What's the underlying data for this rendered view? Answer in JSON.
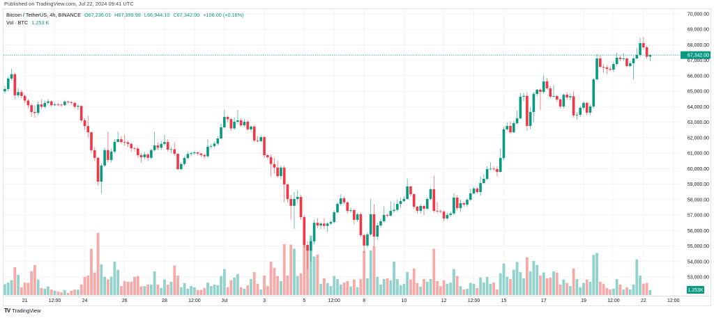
{
  "published": "Published on TradingView.com, Jul 22, 2024 09:41 UTC",
  "legend": {
    "symbol": "Bitcoin / TetherUS, 4h, BINANCE",
    "open": "O67,236.01",
    "high": "H67,399.98",
    "low": "L66,944.10",
    "close": "C67,342.00",
    "change": "+106.00 (+0.16%)",
    "volume_label": "Vol · BTC",
    "volume_value": "1.253 K"
  },
  "footer": {
    "logo_text": "TradingView"
  },
  "colors": {
    "up": "#089981",
    "down": "#f23645",
    "volume_up": "#92d2cc",
    "volume_down": "#f7a9a7",
    "grid": "#f2f3f5"
  },
  "chart_data": {
    "type": "candlestick",
    "symbol": "BTCUSDT",
    "interval": "4h",
    "ylim": [
      53000,
      70000
    ],
    "grid": true,
    "y_ticks": [
      "70,000.00",
      "69,000.00",
      "68,000.00",
      "67,000.00",
      "66,000.00",
      "65,000.00",
      "64,000.00",
      "63,000.00",
      "62,000.00",
      "61,000.00",
      "60,000.00",
      "59,000.00",
      "58,000.00",
      "57,000.00",
      "56,000.00",
      "55,000.00",
      "54,000.00",
      "53,000.00"
    ],
    "x_ticks": [
      "21",
      "12:00",
      "24",
      "26",
      "28",
      "12:00",
      "Jul",
      "3",
      "5",
      "12:00",
      "8",
      "10",
      "12",
      "12:00",
      "15",
      "17",
      "19",
      "12:00",
      "22",
      "12:00"
    ],
    "last_price_label": "67,342.00",
    "last_volume_label": "1.253K",
    "open": [
      65000,
      65150,
      65820,
      66100,
      64740,
      64950,
      64700,
      64400,
      64100,
      63660,
      63600,
      64150,
      64000,
      64250,
      64350,
      64100,
      64150,
      64130,
      64100,
      64330,
      64300,
      64250,
      64000,
      64050,
      63120,
      62750,
      62350,
      61190,
      60700,
      59160,
      60200,
      61200,
      60560,
      61100,
      61730,
      61900,
      61720,
      61700,
      61600,
      61320,
      61300,
      60870,
      60740,
      60920,
      60700,
      61200,
      61500,
      61350,
      61600,
      61720,
      61230,
      61250,
      60960,
      59970,
      60300,
      60690,
      60950,
      61000,
      61050,
      60980,
      60880,
      60800,
      61420,
      61460,
      61620,
      61950,
      62670,
      63340,
      63200,
      62600,
      63030,
      63120,
      62800,
      63030,
      62540,
      62720,
      61820,
      61780,
      62040,
      60870,
      60740,
      60300,
      60070,
      59520,
      60070,
      58980,
      58040,
      57600,
      58040,
      58170,
      56870,
      55070,
      54700,
      55300,
      56500,
      56330,
      56450,
      56300,
      56450,
      56550,
      57180,
      57720,
      58080,
      57820,
      57270,
      57320,
      56690,
      57050,
      55700,
      55030,
      55750,
      57050,
      55610,
      56330,
      56600,
      57010,
      56960,
      57270,
      57340,
      57720,
      57900,
      58040,
      58850,
      58350,
      57540,
      57270,
      57590,
      57410,
      58040,
      58670,
      57270,
      57250,
      57220,
      56780,
      57010,
      57100,
      58130,
      57450,
      57770,
      57680,
      57990,
      58400,
      58710,
      58490,
      59070,
      59340,
      59970,
      60000,
      59970,
      59790,
      60690,
      62540,
      62760,
      62350,
      62940,
      63250,
      64650,
      64700,
      62760,
      63660,
      64830,
      65100,
      64960,
      65640,
      65190,
      64650,
      64690,
      64470,
      64020,
      64780,
      64600,
      64680,
      63440,
      63480,
      63930,
      64250,
      63620,
      64020,
      65770,
      67120,
      66580,
      66540,
      66450,
      66400,
      66760,
      67170,
      67080,
      67120,
      66630,
      66810,
      67120,
      67350,
      68110,
      67840,
      67236.01
    ],
    "high": [
      65350,
      65950,
      66450,
      66200,
      65200,
      65100,
      64800,
      64500,
      64200,
      64100,
      64350,
      64500,
      64400,
      64500,
      64400,
      64250,
      64250,
      64200,
      64450,
      64400,
      64350,
      64300,
      64150,
      64100,
      63250,
      63400,
      62400,
      61400,
      60750,
      60350,
      61350,
      62400,
      61300,
      61900,
      62400,
      62100,
      62200,
      61800,
      61700,
      61400,
      61400,
      61000,
      61100,
      61000,
      61300,
      62400,
      61700,
      61800,
      62200,
      61900,
      61400,
      61700,
      61000,
      60400,
      60800,
      61100,
      61100,
      61150,
      61100,
      61000,
      60950,
      61900,
      61600,
      61750,
      62100,
      62900,
      63800,
      63400,
      63250,
      63300,
      63800,
      63250,
      63200,
      63150,
      62800,
      62800,
      62100,
      62150,
      62100,
      60950,
      60900,
      60700,
      60500,
      60200,
      60200,
      59050,
      58300,
      58500,
      58600,
      58300,
      57000,
      55300,
      55500,
      56700,
      56800,
      56550,
      56800,
      56550,
      56650,
      57300,
      57850,
      58350,
      58200,
      57900,
      57500,
      57400,
      57150,
      57150,
      55800,
      55900,
      58050,
      57700,
      56500,
      56750,
      57550,
      57100,
      57900,
      57800,
      58000,
      58150,
      58200,
      59350,
      58900,
      58400,
      57600,
      57700,
      57650,
      58150,
      58750,
      59550,
      57850,
      57350,
      57300,
      57150,
      57200,
      58400,
      58300,
      58000,
      57850,
      58100,
      58700,
      58800,
      58800,
      59500,
      59650,
      60150,
      60400,
      60150,
      60150,
      61300,
      62700,
      63000,
      63050,
      63100,
      63750,
      64900,
      64900,
      64950,
      64000,
      64950,
      65150,
      65200,
      66050,
      65850,
      65350,
      65400,
      64750,
      64550,
      64850,
      64950,
      64850,
      65000,
      63650,
      64050,
      64350,
      64300,
      64150,
      65850,
      67400,
      67300,
      66750,
      66700,
      66600,
      66900,
      67500,
      67300,
      67450,
      67200,
      66950,
      67200,
      67800,
      68450,
      68500,
      67950,
      67399.98
    ],
    "low": [
      64850,
      65000,
      65700,
      64500,
      64600,
      64550,
      64250,
      63900,
      63350,
      63300,
      63450,
      63850,
      63900,
      64150,
      64000,
      64050,
      64050,
      64000,
      64050,
      64200,
      64150,
      63900,
      63800,
      63000,
      62500,
      62000,
      61000,
      60500,
      58900,
      58400,
      60100,
      60400,
      60400,
      61000,
      61700,
      61600,
      61500,
      61400,
      61100,
      61100,
      60700,
      60400,
      60600,
      60500,
      60600,
      61100,
      61200,
      61200,
      61500,
      61100,
      61000,
      60800,
      59900,
      59900,
      60200,
      60600,
      60800,
      60900,
      60850,
      60750,
      60650,
      60700,
      61300,
      61350,
      61500,
      61900,
      62600,
      63000,
      62450,
      62500,
      62900,
      62700,
      62700,
      62450,
      62400,
      61700,
      61700,
      61700,
      60700,
      60600,
      59500,
      59700,
      59400,
      59300,
      57800,
      57800,
      56700,
      56100,
      57800,
      56700,
      54900,
      53500,
      54000,
      55100,
      56150,
      56100,
      56100,
      55900,
      56350,
      56450,
      57100,
      57600,
      57700,
      57100,
      57150,
      56400,
      56550,
      55550,
      54550,
      54900,
      55650,
      55000,
      55400,
      56200,
      56500,
      56850,
      56900,
      57150,
      57200,
      57450,
      57850,
      58000,
      58200,
      57400,
      57100,
      57100,
      57000,
      57350,
      57950,
      57150,
      57100,
      57100,
      56600,
      56700,
      56900,
      57000,
      57300,
      57200,
      57550,
      57550,
      57900,
      58350,
      58400,
      58250,
      59000,
      59250,
      59900,
      59850,
      59500,
      59750,
      60550,
      62450,
      62250,
      62300,
      62850,
      63200,
      64350,
      62450,
      62550,
      63000,
      64650,
      63800,
      64850,
      65100,
      64550,
      64600,
      64300,
      63900,
      63900,
      64450,
      64400,
      63300,
      63150,
      63350,
      63800,
      63450,
      63450,
      63900,
      65700,
      66500,
      66200,
      66100,
      66300,
      66250,
      66650,
      66950,
      66950,
      66550,
      66550,
      65750,
      67050,
      67250,
      67700,
      67100,
      66944.1
    ],
    "close": [
      65150,
      65820,
      66100,
      64740,
      64950,
      64700,
      64400,
      64100,
      63660,
      63600,
      64150,
      64000,
      64250,
      64350,
      64100,
      64150,
      64130,
      64100,
      64330,
      64300,
      64250,
      64000,
      64050,
      63120,
      62750,
      62350,
      61190,
      60700,
      59160,
      60200,
      61200,
      60560,
      61100,
      61730,
      61900,
      61720,
      61700,
      61600,
      61320,
      61300,
      60870,
      60740,
      60920,
      60700,
      61200,
      61500,
      61350,
      61600,
      61720,
      61230,
      61250,
      60960,
      59970,
      60300,
      60690,
      60950,
      61000,
      61050,
      60980,
      60880,
      60800,
      61420,
      61460,
      61620,
      61950,
      62670,
      63340,
      63200,
      62600,
      63030,
      63120,
      62800,
      63030,
      62540,
      62720,
      61820,
      61780,
      62040,
      60870,
      60740,
      60300,
      60070,
      59520,
      60070,
      58980,
      58040,
      57600,
      58040,
      58170,
      56870,
      55070,
      54700,
      55300,
      56500,
      56330,
      56450,
      56300,
      56450,
      56550,
      57180,
      57720,
      58080,
      57820,
      57270,
      57320,
      56690,
      57050,
      55700,
      55030,
      55750,
      57050,
      55610,
      56330,
      56600,
      57010,
      56960,
      57270,
      57340,
      57720,
      57900,
      58040,
      58850,
      58350,
      57540,
      57270,
      57590,
      57410,
      58040,
      58670,
      57270,
      57250,
      57220,
      56780,
      57010,
      57100,
      58130,
      57450,
      57770,
      57680,
      57990,
      58400,
      58710,
      58490,
      59070,
      59340,
      59970,
      60000,
      59970,
      59790,
      60690,
      62540,
      62760,
      62350,
      62940,
      63250,
      64650,
      64700,
      62760,
      63660,
      64830,
      65100,
      64960,
      65640,
      65190,
      64650,
      64690,
      64470,
      64020,
      64780,
      64600,
      64680,
      63440,
      63480,
      63930,
      64250,
      63620,
      64020,
      65770,
      67120,
      66580,
      66540,
      66450,
      66400,
      66760,
      67170,
      67080,
      67120,
      66630,
      66810,
      67120,
      67350,
      68110,
      67840,
      67236.01,
      67342.0
    ],
    "volume_k": [
      2.8,
      3.2,
      3.8,
      7.2,
      5.2,
      2.0,
      3.2,
      3.1,
      6.1,
      7.7,
      4.0,
      1.8,
      1.6,
      2.2,
      1.4,
      1.1,
      0.9,
      0.7,
      1.3,
      0.5,
      1.1,
      1.4,
      1.4,
      2.7,
      4.7,
      5.0,
      11.9,
      5.8,
      16.0,
      7.9,
      4.7,
      4.0,
      4.7,
      8.6,
      6.5,
      2.3,
      3.6,
      3.4,
      3.4,
      4.7,
      4.9,
      2.2,
      2.3,
      2.7,
      2.7,
      6.1,
      2.7,
      1.8,
      4.0,
      2.7,
      3.4,
      7.6,
      5.0,
      2.0,
      3.1,
      1.6,
      2.3,
      2.0,
      1.3,
      1.3,
      1.8,
      3.2,
      2.3,
      2.7,
      2.5,
      4.9,
      6.7,
      2.0,
      3.8,
      4.5,
      5.4,
      2.0,
      1.6,
      2.5,
      4.1,
      5.9,
      2.9,
      1.4,
      5.0,
      2.3,
      8.6,
      7.0,
      4.9,
      3.6,
      13.1,
      5.0,
      13.0,
      11.9,
      4.9,
      5.6,
      14.4,
      12.6,
      15.3,
      9.9,
      10.4,
      2.9,
      4.3,
      3.1,
      2.3,
      4.9,
      4.1,
      2.7,
      3.2,
      3.6,
      2.2,
      4.0,
      2.0,
      4.1,
      11.3,
      4.3,
      11.5,
      12.6,
      4.7,
      2.7,
      4.1,
      4.3,
      3.8,
      8.6,
      4.1,
      2.5,
      2.9,
      5.9,
      4.0,
      6.8,
      3.1,
      2.2,
      4.1,
      3.4,
      4.1,
      11.9,
      3.6,
      2.3,
      3.8,
      2.9,
      3.2,
      6.7,
      4.9,
      2.3,
      1.4,
      1.6,
      3.1,
      2.9,
      1.8,
      4.5,
      3.2,
      4.7,
      2.9,
      3.2,
      1.4,
      5.6,
      8.1,
      4.7,
      4.1,
      6.5,
      8.5,
      5.9,
      4.3,
      9.7,
      6.1,
      8.8,
      7.7,
      5.0,
      5.8,
      4.3,
      4.5,
      6.1,
      5.8,
      2.7,
      4.0,
      3.1,
      2.3,
      6.8,
      4.1,
      2.0,
      3.1,
      4.0,
      3.4,
      10.3,
      10.8,
      3.4,
      2.9,
      1.8,
      1.4,
      1.6,
      4.1,
      2.7,
      1.4,
      2.0,
      1.4,
      2.7,
      9.2,
      5.0,
      2.9,
      3.1,
      1.253
    ]
  }
}
